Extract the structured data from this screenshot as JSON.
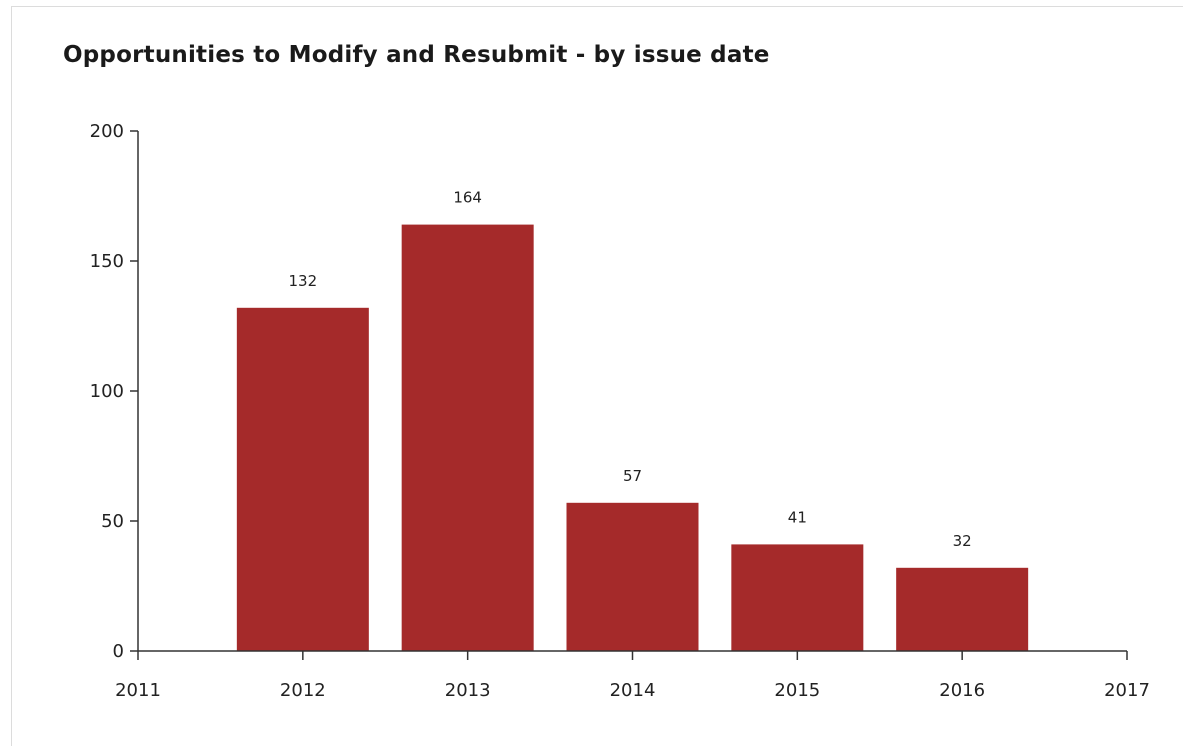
{
  "chart_data": {
    "type": "bar",
    "title": "Opportunities to Modify and Resubmit - by issue date",
    "xlabel": "",
    "ylabel": "",
    "categories": [
      "2012",
      "2013",
      "2014",
      "2015",
      "2016"
    ],
    "values": [
      132,
      164,
      57,
      41,
      32
    ],
    "data_labels": [
      "132",
      "164",
      "57",
      "41",
      "32"
    ],
    "ylim": [
      0,
      200
    ],
    "yticks": [
      0,
      50,
      100,
      150,
      200
    ],
    "xlim": [
      2011,
      2017
    ],
    "xticks": [
      2011,
      2012,
      2013,
      2014,
      2015,
      2016,
      2017
    ],
    "bar_color": "#a52a2a",
    "grid": false,
    "legend": "none"
  }
}
